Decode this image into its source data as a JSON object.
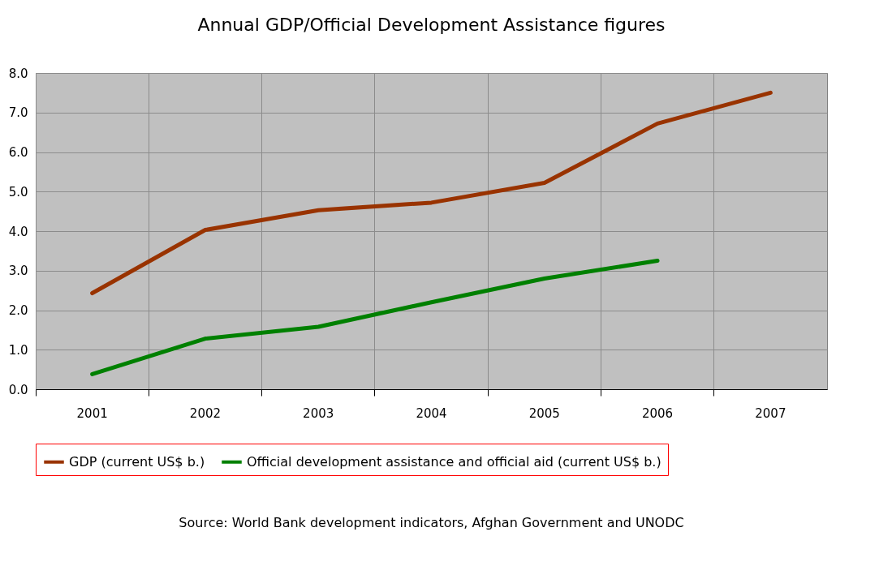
{
  "chart_data": {
    "type": "line",
    "title": "Annual GDP/Official Development Assistance figures",
    "categories": [
      "2001",
      "2002",
      "2003",
      "2004",
      "2005",
      "2006",
      "2007"
    ],
    "series": [
      {
        "name": "GDP (current US$ b.)",
        "color": "#993300",
        "values": [
          2.43,
          4.03,
          4.53,
          4.72,
          5.22,
          6.72,
          7.5
        ]
      },
      {
        "name": "Official development assistance and official aid (current US$ b.)",
        "color": "#008000",
        "values": [
          0.38,
          1.28,
          1.58,
          2.2,
          2.8,
          3.25,
          null
        ]
      }
    ],
    "ylim": [
      0,
      8
    ],
    "yticks": [
      {
        "value": 0,
        "label": "0.0"
      },
      {
        "value": 1,
        "label": "1.0"
      },
      {
        "value": 2,
        "label": "2.0"
      },
      {
        "value": 3,
        "label": "3.0"
      },
      {
        "value": 4,
        "label": "4.0"
      },
      {
        "value": 5,
        "label": "5.0"
      },
      {
        "value": 6,
        "label": "6.0"
      },
      {
        "value": 7,
        "label": "7.0"
      },
      {
        "value": 8,
        "label": "8.0"
      }
    ],
    "grid": true,
    "legend": "bottom",
    "marker": "none",
    "line_style": "solid",
    "annotations": [
      "Source: World Bank development indicators, Afghan Government and UNODC"
    ]
  }
}
